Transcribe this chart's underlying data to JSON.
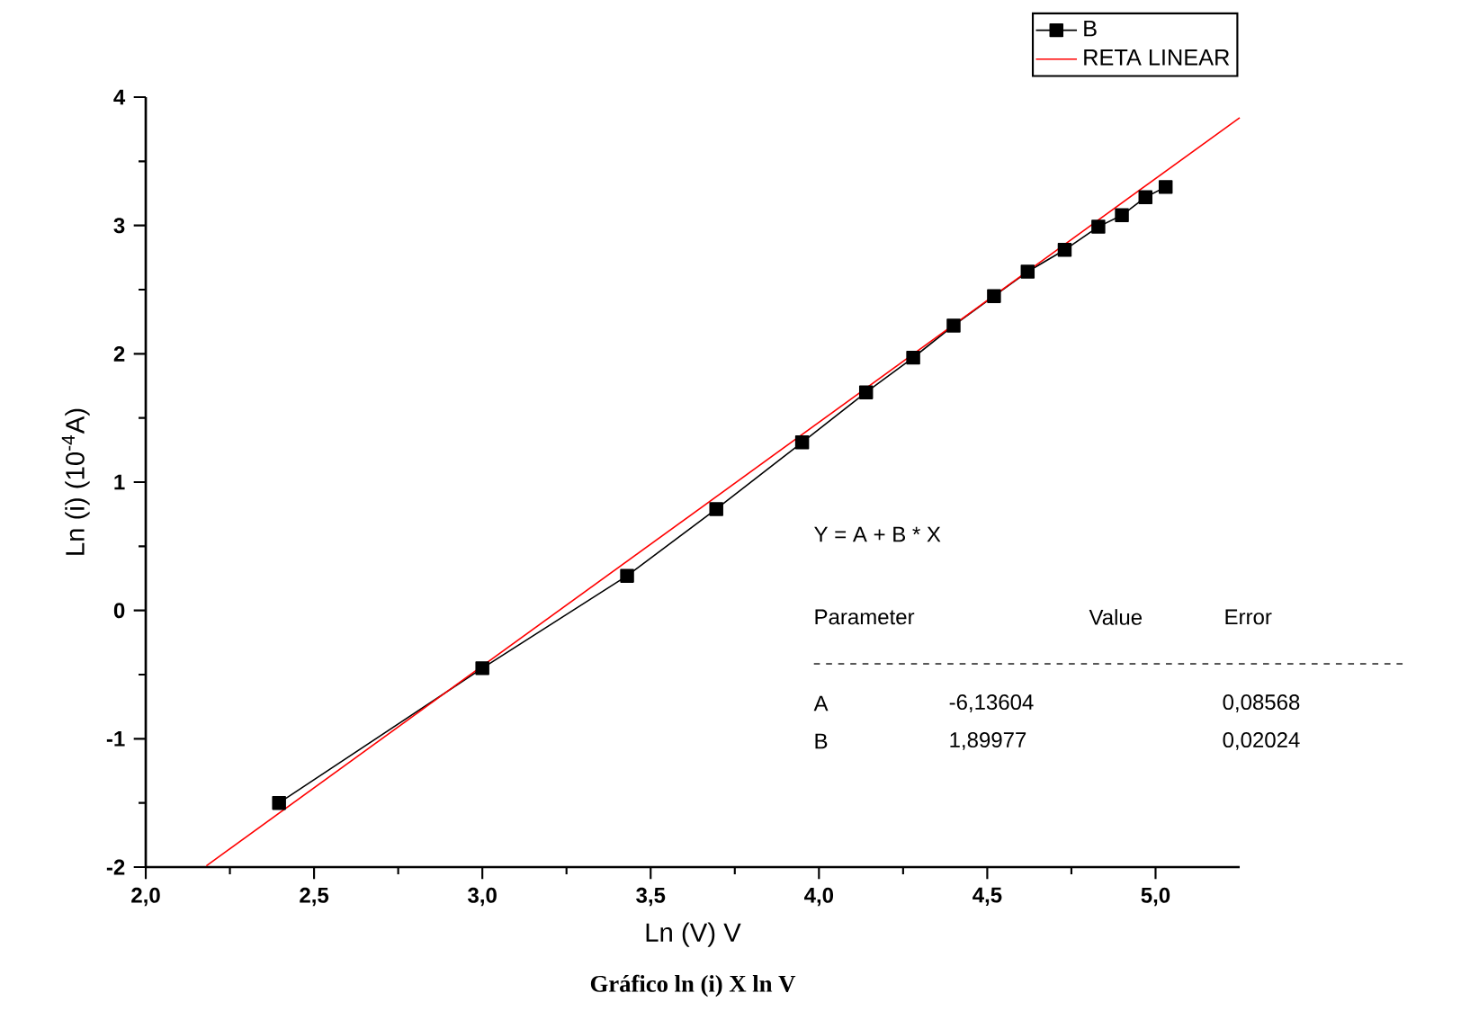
{
  "chart_data": {
    "type": "line",
    "title": "Gráfico ln (i) X ln V",
    "xlabel": "Ln (V) V",
    "ylabel": "Ln (i) (10$^{-4}$A)",
    "xlim": [
      2.0,
      5.25
    ],
    "ylim": [
      -2,
      4
    ],
    "xticks": [
      {
        "value": 2.0,
        "label": "2,0"
      },
      {
        "value": 2.5,
        "label": "2,5"
      },
      {
        "value": 3.0,
        "label": "3,0"
      },
      {
        "value": 3.5,
        "label": "3,5"
      },
      {
        "value": 4.0,
        "label": "4,0"
      },
      {
        "value": 4.5,
        "label": "4,5"
      },
      {
        "value": 5.0,
        "label": "5,0"
      }
    ],
    "yticks": [
      -2,
      -1,
      0,
      1,
      2,
      3,
      4
    ],
    "legend": "top right",
    "grid": false,
    "line_style": "solid",
    "series": [
      {
        "name": "B",
        "color": "#000000",
        "marker": "square",
        "x": [
          2.396,
          3.0,
          3.43,
          3.695,
          3.95,
          4.14,
          4.28,
          4.4,
          4.52,
          4.62,
          4.73,
          4.83,
          4.9,
          4.97,
          5.03
        ],
        "values": [
          -1.5,
          -0.45,
          0.27,
          0.79,
          1.31,
          1.7,
          1.97,
          2.22,
          2.45,
          2.64,
          2.81,
          2.99,
          3.08,
          3.22,
          3.3
        ]
      },
      {
        "name": "RETA LINEAR",
        "color": "#ff0000",
        "marker": "none",
        "x": [
          2.18,
          5.25
        ],
        "values": [
          -1.99,
          3.84
        ]
      }
    ],
    "annotations": [
      "Y = A + B * X",
      "Parameter",
      "Value",
      "Error",
      "A",
      "-6,13604",
      "0,08568",
      "B",
      "1,89977",
      "0,02024"
    ]
  }
}
